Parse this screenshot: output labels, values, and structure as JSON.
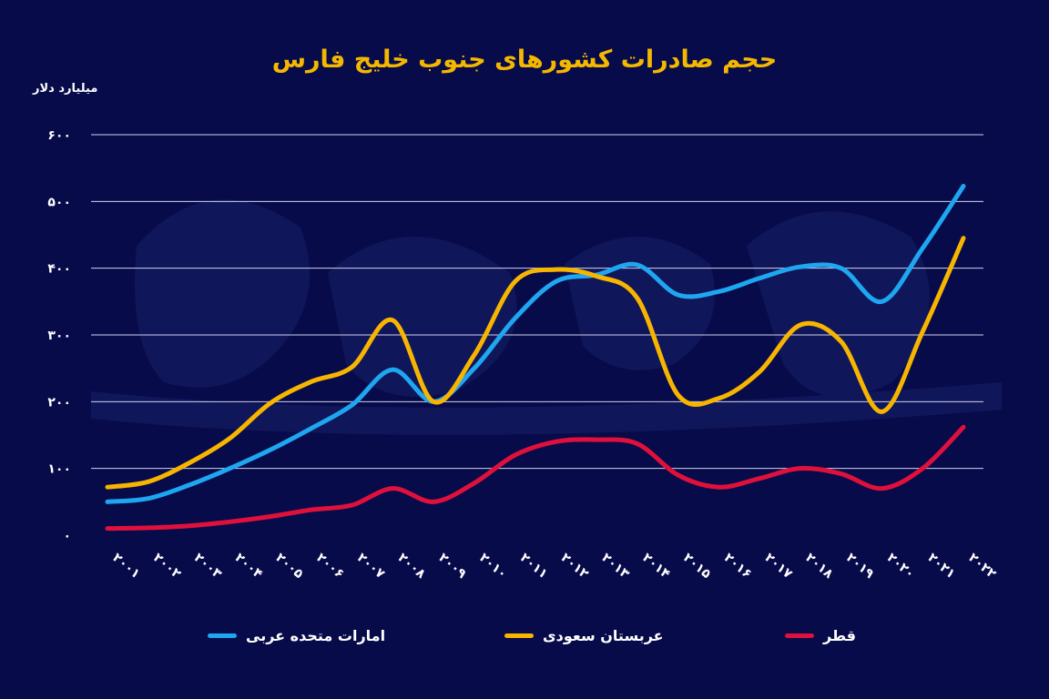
{
  "chart_data": {
    "type": "line",
    "title": "حجم صادرات کشورهای جنوب خلیج فارس",
    "ylabel": "میلیارد دلار",
    "xlabel": "",
    "ylim": [
      0,
      600
    ],
    "y_ticks": [
      0,
      100,
      200,
      300,
      400,
      500,
      600
    ],
    "y_tick_labels": [
      "۰",
      "۱۰۰",
      "۲۰۰",
      "۳۰۰",
      "۴۰۰",
      "۵۰۰",
      "۶۰۰"
    ],
    "x": [
      2001,
      2002,
      2003,
      2004,
      2005,
      2006,
      2007,
      2008,
      2009,
      2010,
      2011,
      2012,
      2013,
      2014,
      2015,
      2016,
      2017,
      2018,
      2019,
      2020,
      2021,
      2022
    ],
    "x_tick_labels": [
      "۲۰۰۱",
      "۲۰۰۲",
      "۲۰۰۳",
      "۲۰۰۴",
      "۲۰۰۵",
      "۲۰۰۶",
      "۲۰۰۷",
      "۲۰۰۸",
      "۲۰۰۹",
      "۲۰۱۰",
      "۲۰۱۱",
      "۲۰۱۲",
      "۲۰۱۳",
      "۲۰۱۴",
      "۲۰۱۵",
      "۲۰۱۶",
      "۲۰۱۷",
      "۲۰۱۸",
      "۲۰۱۹",
      "۲۰۲۰",
      "۲۰۲۱",
      "۲۰۲۲"
    ],
    "grid": true,
    "legend_position": "bottom",
    "series": [
      {
        "name": "امارات متحده عربی",
        "color": "#1ea6f0",
        "values": [
          50,
          55,
          75,
          100,
          128,
          160,
          195,
          248,
          200,
          250,
          325,
          380,
          390,
          405,
          360,
          365,
          385,
          402,
          400,
          350,
          430,
          523
        ]
      },
      {
        "name": "عربستان سعودی",
        "color": "#f7b500",
        "values": [
          72,
          80,
          108,
          145,
          198,
          230,
          252,
          322,
          200,
          270,
          380,
          398,
          388,
          355,
          210,
          205,
          245,
          315,
          290,
          185,
          305,
          445
        ]
      },
      {
        "name": "قطر",
        "color": "#e0103c",
        "values": [
          10,
          11,
          14,
          20,
          28,
          38,
          45,
          70,
          50,
          78,
          120,
          140,
          143,
          137,
          90,
          72,
          85,
          100,
          92,
          70,
          100,
          162
        ]
      }
    ]
  }
}
